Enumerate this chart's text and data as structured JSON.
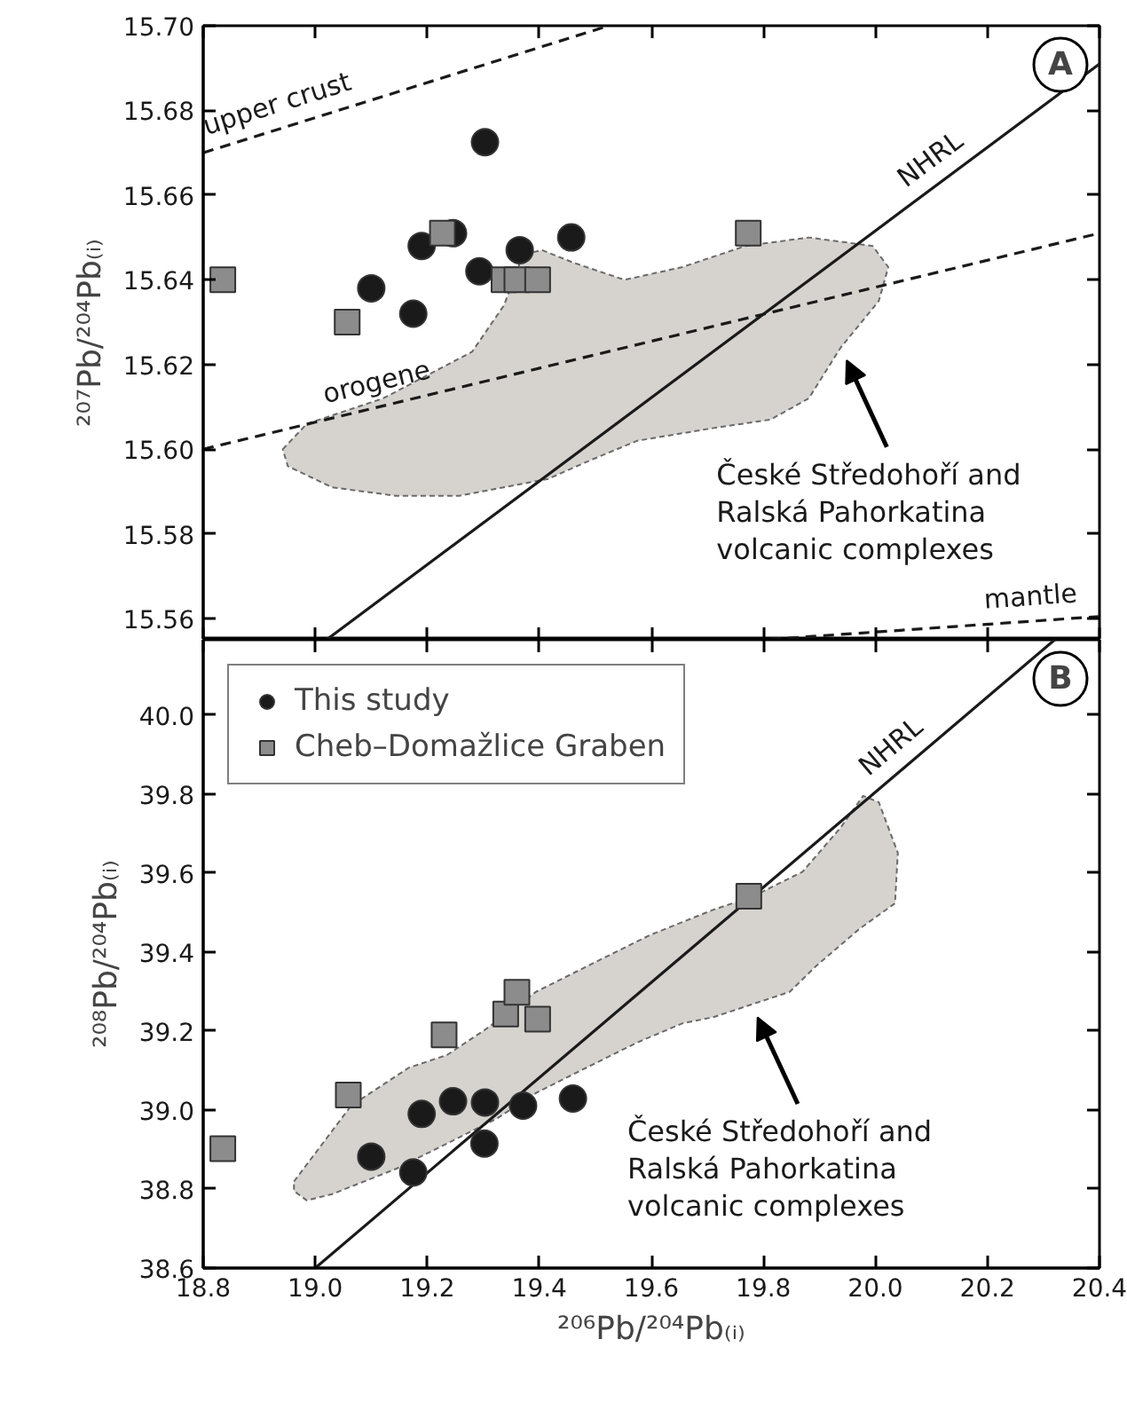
{
  "chart_data": [
    {
      "type": "scatter",
      "ylabel": "²⁰⁷Pb/²⁰⁴Pb₍ᵢ₎",
      "xlim": [
        18.8,
        20.4
      ],
      "ylim": [
        15.555,
        15.7
      ],
      "tick_labels": "y",
      "xticks": [
        {
          "value": 18.8,
          "label": null
        },
        {
          "value": 19,
          "label": null
        },
        {
          "value": 19.2,
          "label": null
        },
        {
          "value": 19.4,
          "label": null
        },
        {
          "value": 19.6,
          "label": null
        },
        {
          "value": 19.8,
          "label": null
        },
        {
          "value": 20,
          "label": null
        },
        {
          "value": 20.2,
          "label": null
        },
        {
          "value": 20.4,
          "label": null
        }
      ],
      "yticks": [
        15.56,
        15.58,
        {
          "value": 15.6,
          "label": "15.60"
        },
        15.62,
        15.64,
        15.66,
        15.68,
        {
          "value": 15.7,
          "label": "15.70"
        }
      ],
      "series": [
        {
          "type": "area",
          "color": "#d6d3cf",
          "x": [
            18.942,
            18.985,
            19.121,
            19.28,
            19.337,
            19.371,
            19.405,
            19.462,
            19.552,
            19.655,
            19.768,
            19.881,
            19.995,
            20.023,
            20.006,
            19.938,
            19.881,
            19.813,
            19.711,
            19.575,
            19.484,
            19.416,
            19.257,
            19.144,
            19.03,
            18.951
          ],
          "values": [
            15.6,
            15.606,
            15.612,
            15.623,
            15.634,
            15.646,
            15.647,
            15.644,
            15.64,
            15.643,
            15.648,
            15.65,
            15.648,
            15.643,
            15.635,
            15.624,
            15.612,
            15.607,
            15.605,
            15.602,
            15.597,
            15.593,
            15.589,
            15.589,
            15.591,
            15.596
          ]
        },
        {
          "type": "line",
          "name": "upper crust",
          "color": "#1a1a1a",
          "line_style": "dashed",
          "x": [
            18.8,
            19.524
          ],
          "values": [
            15.67,
            15.7
          ]
        },
        {
          "type": "line",
          "name": "orogene",
          "color": "#1a1a1a",
          "line_style": "dashed",
          "x": [
            18.8,
            20.4
          ],
          "values": [
            15.6,
            15.651
          ]
        },
        {
          "type": "line",
          "name": "NHRL",
          "color": "#1a1a1a",
          "line_style": "solid",
          "x": [
            20.4,
            19.02
          ],
          "values": [
            15.691,
            15.555
          ]
        },
        {
          "type": "line",
          "name": "mantle",
          "color": "#1a1a1a",
          "line_style": "dashed",
          "x": [
            20.4,
            19.8
          ],
          "values": [
            15.5605,
            15.555
          ]
        },
        {
          "type": "scatter",
          "marker": "circle",
          "color": "#1a1a1a",
          "x": [
            19.303,
            19.19,
            19.246,
            19.1,
            19.175,
            19.293,
            19.365,
            19.457
          ],
          "values": [
            15.6725,
            15.648,
            15.651,
            15.638,
            15.632,
            15.642,
            15.647,
            15.65
          ]
        },
        {
          "type": "scatter",
          "marker": "square",
          "color": "#8c8c8c",
          "x": [
            18.835,
            19.057,
            19.227,
            19.337,
            19.36,
            19.397,
            19.773
          ],
          "values": [
            15.64,
            15.63,
            15.651,
            15.64,
            15.64,
            15.64,
            15.651
          ]
        }
      ],
      "annotations": [
        "A",
        {
          "text": "České Středohoří and\nRalská Pahorkatina\nvolcanic complexes",
          "x": 19.938,
          "y": 15.624
        }
      ]
    },
    {
      "type": "scatter",
      "xlabel": "²⁰⁶Pb/²⁰⁴Pb₍ᵢ₎",
      "ylabel": "²⁰⁸Pb/²⁰⁴Pb₍ᵢ₎",
      "xlim": [
        18.8,
        20.4
      ],
      "ylim": [
        38.6,
        40.19
      ],
      "legend": "top left",
      "xticks": [
        18.8,
        {
          "value": 19,
          "label": "19.0"
        },
        19.2,
        19.4,
        19.6,
        19.8,
        {
          "value": 20,
          "label": "20.0"
        },
        20.2,
        20.4
      ],
      "yticks": [
        38.6,
        38.8,
        {
          "value": 39,
          "label": "39.0"
        },
        39.2,
        39.4,
        39.6,
        39.8,
        {
          "value": 40,
          "label": "40.0"
        }
      ],
      "series": [
        {
          "type": "area",
          "color": "#d6d3cf",
          "x": [
            18.962,
            18.996,
            19.064,
            19.167,
            19.235,
            19.303,
            19.394,
            19.484,
            19.598,
            19.711,
            19.779,
            19.87,
            19.938,
            19.978,
            20.006,
            20.04,
            20.035,
            19.972,
            19.893,
            19.847,
            19.779,
            19.711,
            19.655,
            19.575,
            19.484,
            19.394,
            19.325,
            19.235,
            19.144,
            19.03,
            18.985,
            18.962
          ],
          "values": [
            38.819,
            38.883,
            39.011,
            39.107,
            39.139,
            39.203,
            39.299,
            39.363,
            39.443,
            39.507,
            39.539,
            39.603,
            39.715,
            39.795,
            39.779,
            39.651,
            39.523,
            39.459,
            39.363,
            39.299,
            39.267,
            39.235,
            39.219,
            39.171,
            39.107,
            39.043,
            38.979,
            38.915,
            38.851,
            38.787,
            38.771,
            38.795
          ]
        },
        {
          "type": "line",
          "name": "NHRL",
          "color": "#1a1a1a",
          "line_style": "solid",
          "x": [
            20.32,
            19.0
          ],
          "values": [
            40.19,
            38.6
          ]
        },
        {
          "type": "scatter",
          "name": "This study",
          "marker": "circle",
          "color": "#1a1a1a",
          "x": [
            19.1,
            19.175,
            19.19,
            19.246,
            19.303,
            19.302,
            19.371,
            19.46
          ],
          "values": [
            38.882,
            38.842,
            38.99,
            39.022,
            39.019,
            38.915,
            39.011,
            39.029
          ]
        },
        {
          "type": "scatter",
          "name": "Cheb–Domažlice Graben",
          "marker": "square",
          "color": "#8c8c8c",
          "x": [
            18.835,
            19.059,
            19.23,
            19.34,
            19.36,
            19.397,
            19.774
          ],
          "values": [
            38.902,
            39.038,
            39.19,
            39.243,
            39.298,
            39.23,
            39.541
          ]
        }
      ],
      "annotations": [
        "B",
        {
          "text": "České Středohoří and\nRalská Pahorkatina\nvolcanic complexes",
          "x": 19.779,
          "y": 39.267
        }
      ]
    }
  ]
}
